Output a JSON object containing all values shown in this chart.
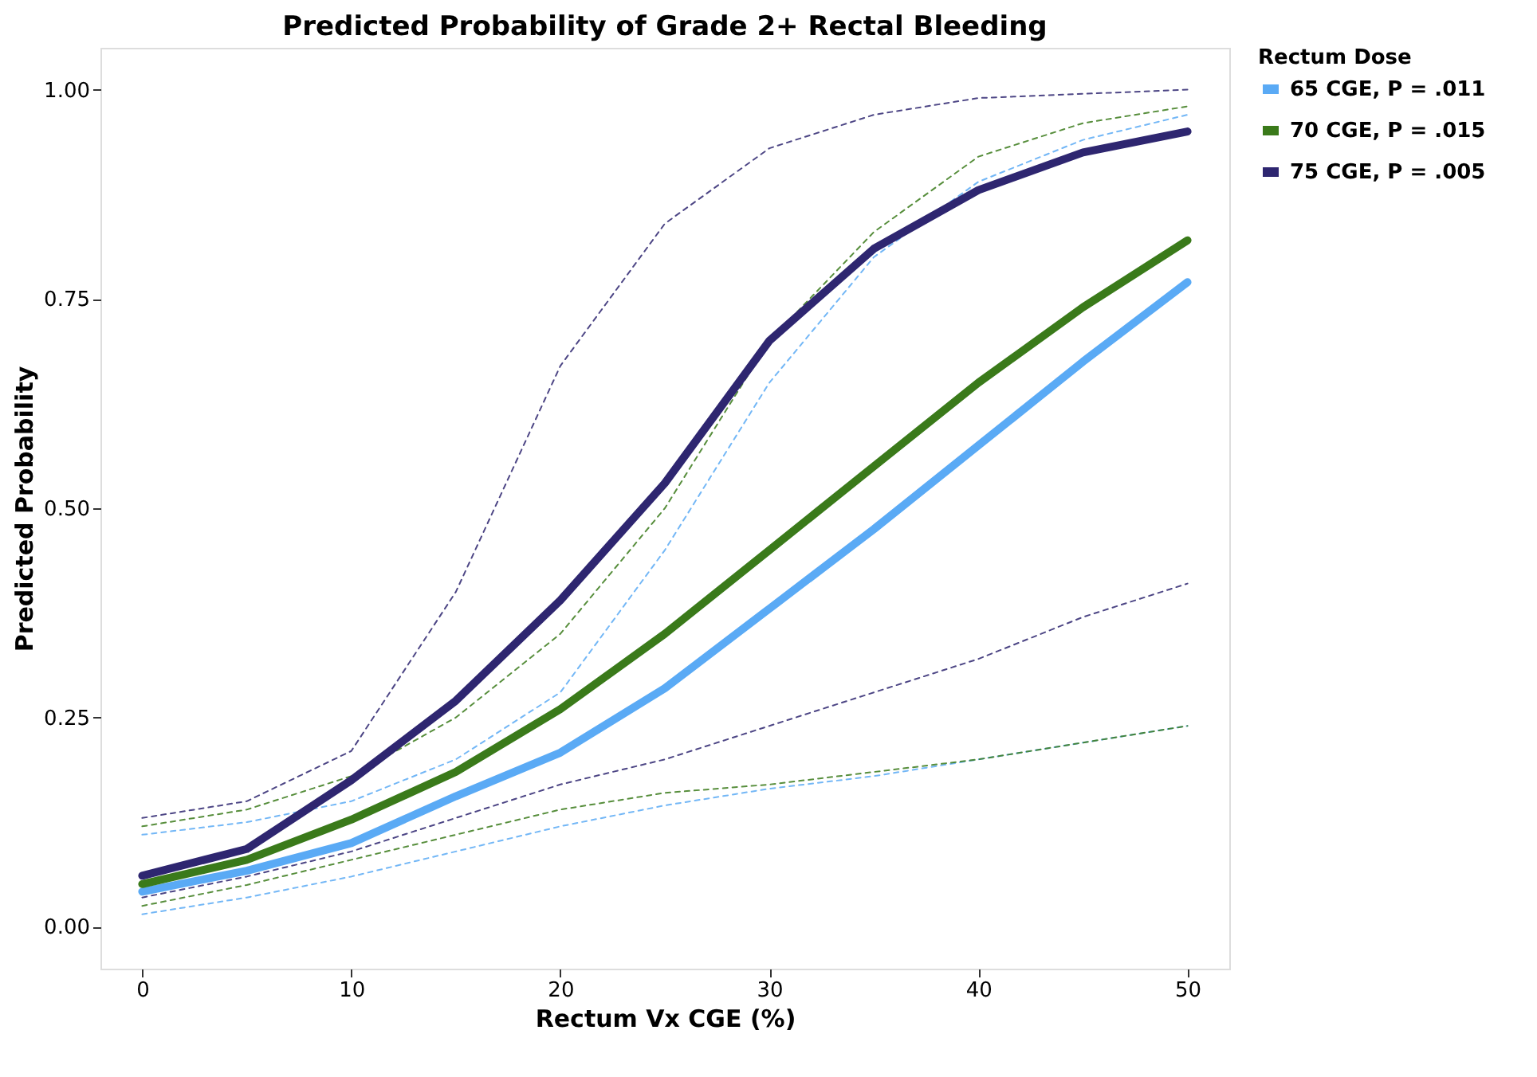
{
  "chart_data": {
    "type": "line",
    "title": "Predicted Probability of Grade 2+ Rectal Bleeding",
    "xlabel": "Rectum Vx CGE (%)",
    "ylabel": "Predicted Probability",
    "legend_title": "Rectum Dose",
    "legend": "right",
    "grid": false,
    "line_style": "solid",
    "marker": "none",
    "x": [
      0,
      5,
      10,
      15,
      20,
      25,
      30,
      35,
      40,
      45,
      50
    ],
    "xlim": [
      -2,
      52
    ],
    "xticks": [
      0,
      10,
      20,
      30,
      40,
      50
    ],
    "ylim": [
      -0.05,
      1.05
    ],
    "yticks": [
      {
        "value": 0,
        "label": "0.00"
      },
      {
        "value": 0.25,
        "label": "0.25"
      },
      {
        "value": 0.5,
        "label": "0.50"
      },
      {
        "value": 0.75,
        "label": "0.75"
      },
      {
        "value": 1,
        "label": "1.00"
      }
    ],
    "series": [
      {
        "name": "65 CGE, P = .011",
        "color": "#5aaaf5",
        "values": [
          0.042,
          0.067,
          0.1,
          0.156,
          0.208,
          0.285,
          0.38,
          0.475,
          0.575,
          0.675,
          0.77
        ]
      },
      {
        "name": "70 CGE, P = .015",
        "color": "#3a7a1a",
        "values": [
          0.051,
          0.08,
          0.128,
          0.185,
          0.26,
          0.35,
          0.45,
          0.55,
          0.65,
          0.74,
          0.82
        ]
      },
      {
        "name": "75 CGE, P = .005",
        "color": "#2e2670",
        "values": [
          0.061,
          0.093,
          0.175,
          0.27,
          0.39,
          0.53,
          0.7,
          0.81,
          0.88,
          0.925,
          0.95
        ]
      },
      {
        "color": "#5aaaf5",
        "line_style": "dashed",
        "values": [
          0.015,
          0.035,
          0.06,
          0.09,
          0.12,
          0.145,
          0.165,
          0.18,
          0.2,
          0.22,
          0.24
        ]
      },
      {
        "color": "#5aaaf5",
        "line_style": "dashed",
        "values": [
          0.11,
          0.125,
          0.15,
          0.2,
          0.28,
          0.45,
          0.65,
          0.8,
          0.89,
          0.94,
          0.97
        ]
      },
      {
        "color": "#3a7a1a",
        "line_style": "dashed",
        "values": [
          0.025,
          0.05,
          0.08,
          0.11,
          0.14,
          0.16,
          0.17,
          0.185,
          0.2,
          0.22,
          0.24
        ]
      },
      {
        "color": "#3a7a1a",
        "line_style": "dashed",
        "values": [
          0.12,
          0.14,
          0.18,
          0.25,
          0.35,
          0.5,
          0.7,
          0.83,
          0.92,
          0.96,
          0.98
        ]
      },
      {
        "color": "#2e2670",
        "line_style": "dashed",
        "values": [
          0.035,
          0.06,
          0.09,
          0.13,
          0.17,
          0.2,
          0.24,
          0.28,
          0.32,
          0.37,
          0.41
        ]
      },
      {
        "color": "#2e2670",
        "line_style": "dashed",
        "values": [
          0.13,
          0.15,
          0.21,
          0.4,
          0.67,
          0.84,
          0.93,
          0.97,
          0.99,
          0.995,
          1.0
        ]
      }
    ]
  }
}
